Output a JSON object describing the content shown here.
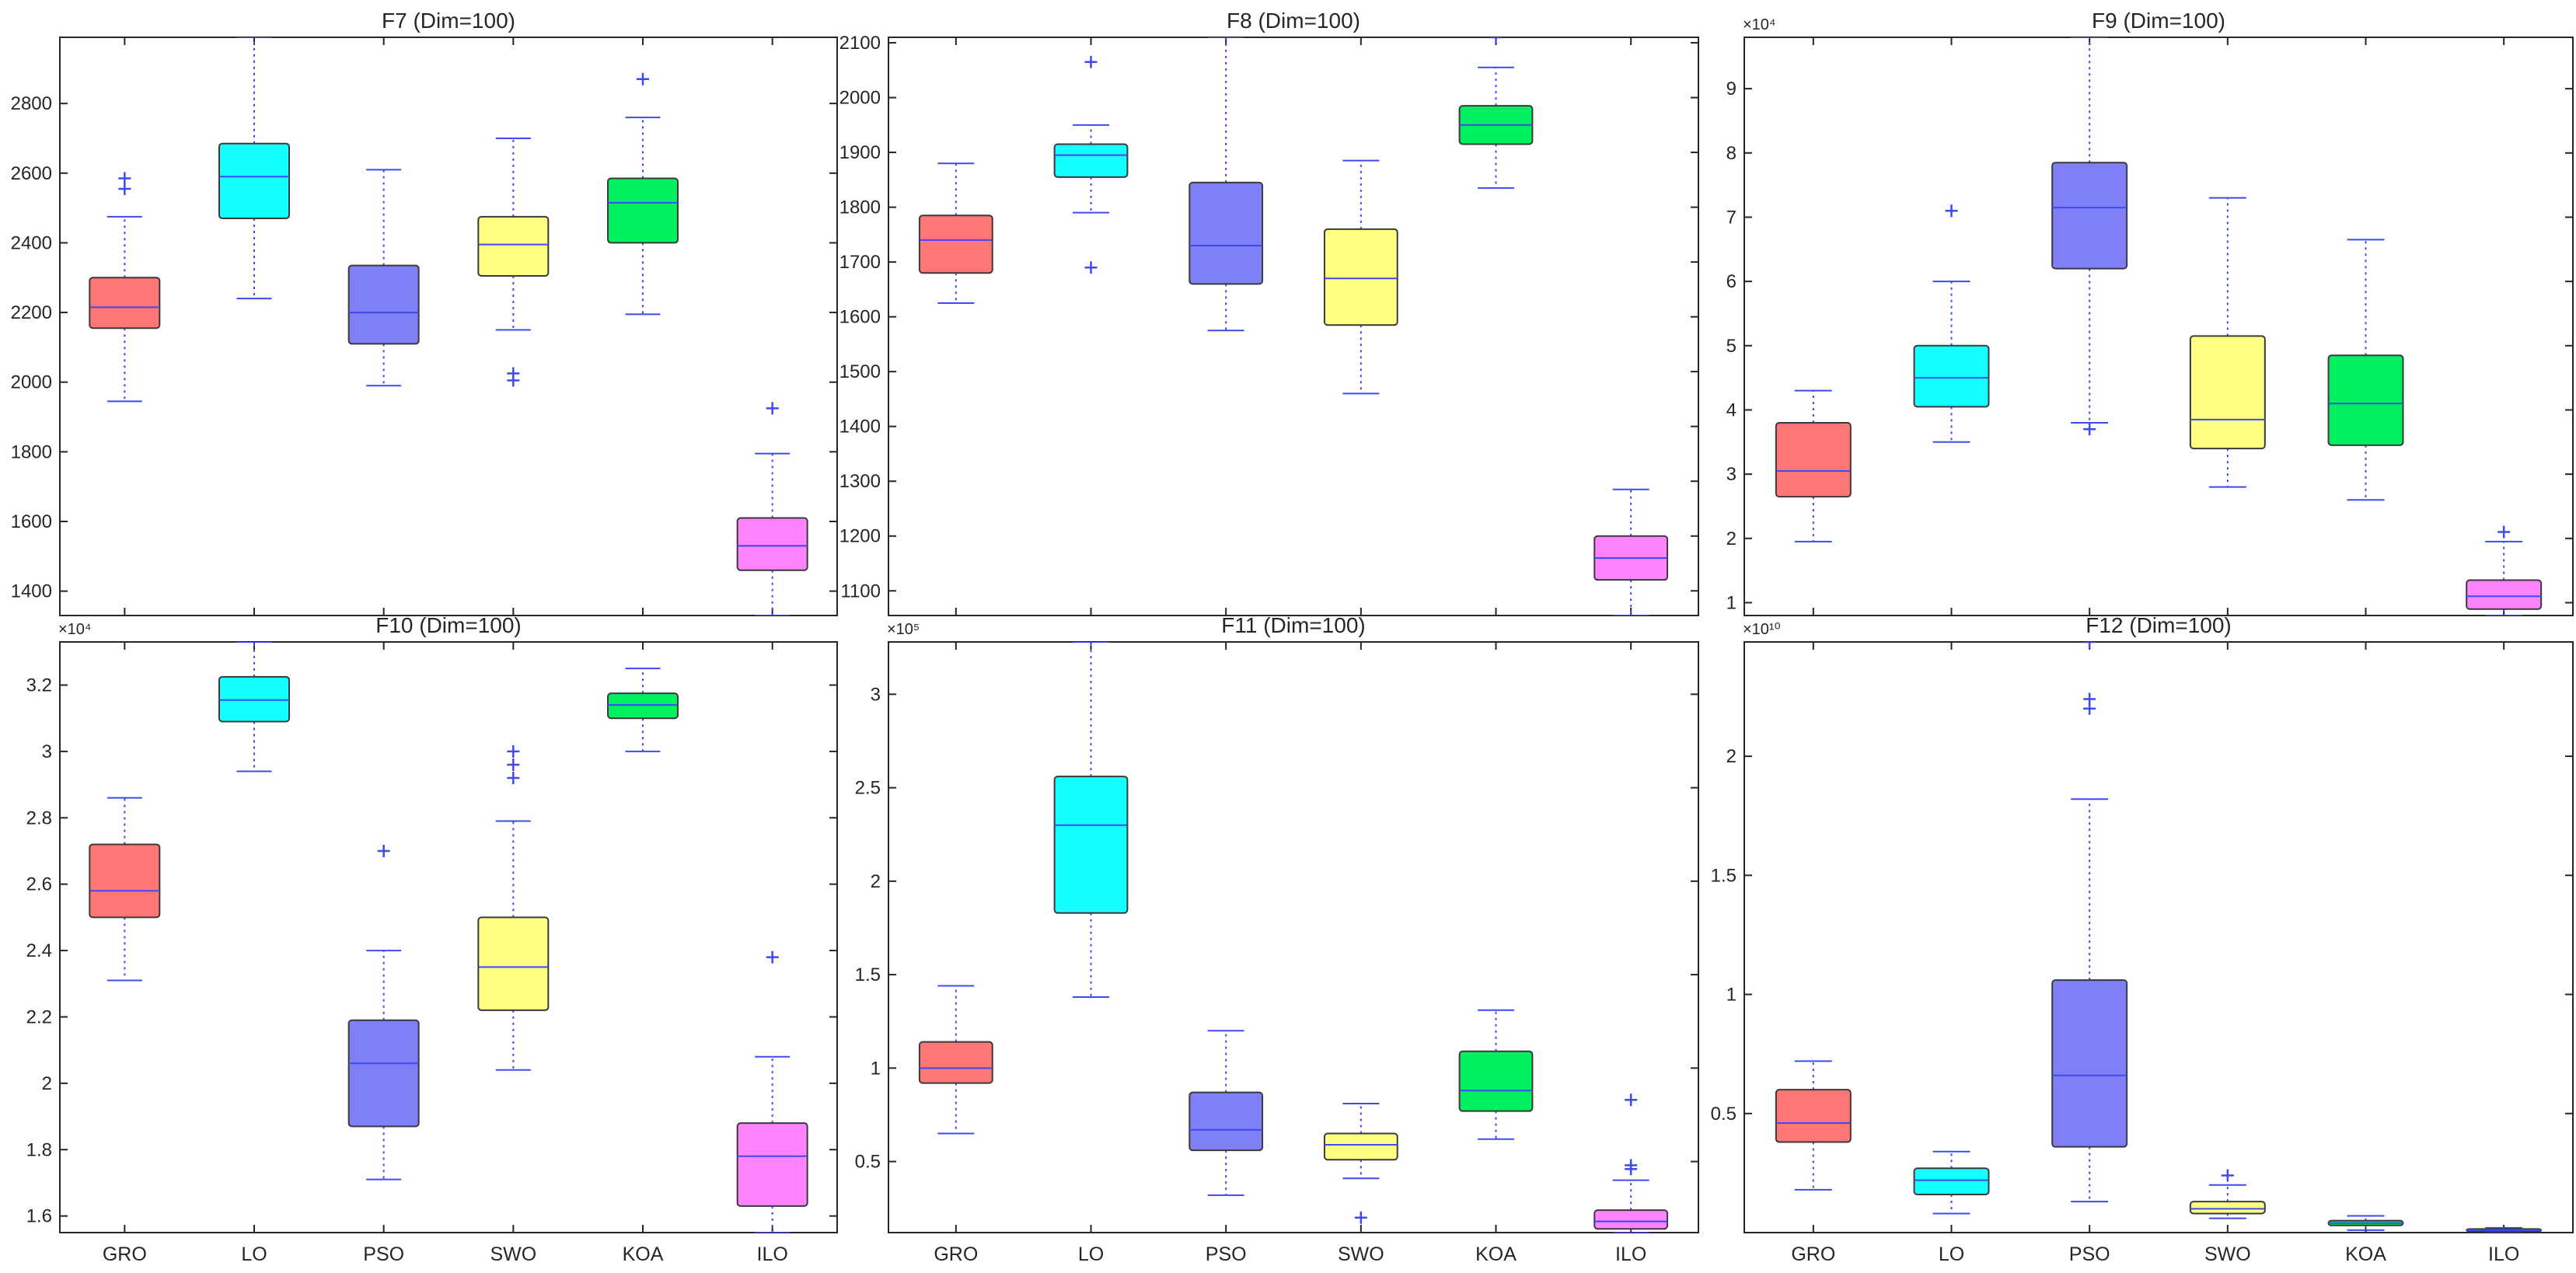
{
  "figure": {
    "categories": [
      "GRO",
      "LO",
      "PSO",
      "SWO",
      "KOA",
      "ILO"
    ]
  },
  "colors": {
    "GRO": "#ff7676",
    "LO": "#14ffff",
    "PSO": "#7f7ff7",
    "SWO": "#ffff82",
    "KOA": "#00f060",
    "ILO": "#ff82ff",
    "whisker": "#3d4af2",
    "outlier": "#3d4af2",
    "axis": "#262626"
  },
  "chart_data": [
    {
      "type": "box",
      "title": "F7 (Dim=100)",
      "multiplier": "",
      "ylim": [
        1330,
        2990
      ],
      "yticks": [
        1400,
        1600,
        1800,
        2000,
        2200,
        2400,
        2600,
        2800
      ],
      "ytick_labels": [
        "1400",
        "1600",
        "1800",
        "2000",
        "2200",
        "2400",
        "2600",
        "2800"
      ],
      "show_xticklabels": false,
      "boxes": [
        {
          "name": "GRO",
          "whislo": 1945,
          "q1": 2155,
          "med": 2215,
          "q3": 2300,
          "whishi": 2475,
          "fliers": [
            2555,
            2585
          ]
        },
        {
          "name": "LO",
          "whislo": 2240,
          "q1": 2470,
          "med": 2590,
          "q3": 2685,
          "whishi": 2990,
          "fliers": []
        },
        {
          "name": "PSO",
          "whislo": 1990,
          "q1": 2110,
          "med": 2200,
          "q3": 2335,
          "whishi": 2610,
          "fliers": []
        },
        {
          "name": "SWO",
          "whislo": 2150,
          "q1": 2305,
          "med": 2395,
          "q3": 2475,
          "whishi": 2700,
          "fliers": [
            2005,
            2025
          ]
        },
        {
          "name": "KOA",
          "whislo": 2195,
          "q1": 2400,
          "med": 2515,
          "q3": 2585,
          "whishi": 2760,
          "fliers": [
            2870
          ]
        },
        {
          "name": "ILO",
          "whislo": 1330,
          "q1": 1460,
          "med": 1530,
          "q3": 1610,
          "whishi": 1795,
          "fliers": [
            1925
          ]
        }
      ]
    },
    {
      "type": "box",
      "title": "F8 (Dim=100)",
      "multiplier": "",
      "ylim": [
        1055,
        2110
      ],
      "yticks": [
        1100,
        1200,
        1300,
        1400,
        1500,
        1600,
        1700,
        1800,
        1900,
        2000,
        2100
      ],
      "ytick_labels": [
        "1100",
        "1200",
        "1300",
        "1400",
        "1500",
        "1600",
        "1700",
        "1800",
        "1900",
        "2000",
        "2100"
      ],
      "show_xticklabels": false,
      "boxes": [
        {
          "name": "GRO",
          "whislo": 1625,
          "q1": 1680,
          "med": 1740,
          "q3": 1785,
          "whishi": 1880,
          "fliers": []
        },
        {
          "name": "LO",
          "whislo": 1790,
          "q1": 1855,
          "med": 1895,
          "q3": 1915,
          "whishi": 1950,
          "fliers": [
            1690,
            2065
          ]
        },
        {
          "name": "PSO",
          "whislo": 1575,
          "q1": 1660,
          "med": 1730,
          "q3": 1845,
          "whishi": 2110,
          "fliers": []
        },
        {
          "name": "SWO",
          "whislo": 1460,
          "q1": 1585,
          "med": 1670,
          "q3": 1760,
          "whishi": 1885,
          "fliers": []
        },
        {
          "name": "KOA",
          "whislo": 1835,
          "q1": 1915,
          "med": 1950,
          "q3": 1985,
          "whishi": 2055,
          "fliers": [
            2110
          ]
        },
        {
          "name": "ILO",
          "whislo": 1055,
          "q1": 1120,
          "med": 1160,
          "q3": 1200,
          "whishi": 1285,
          "fliers": []
        }
      ]
    },
    {
      "type": "box",
      "title": "F9 (Dim=100)",
      "multiplier": "×10⁴",
      "ylim": [
        0.8,
        9.8
      ],
      "yticks": [
        1,
        2,
        3,
        4,
        5,
        6,
        7,
        8,
        9
      ],
      "ytick_labels": [
        "1",
        "2",
        "3",
        "4",
        "5",
        "6",
        "7",
        "8",
        "9"
      ],
      "show_xticklabels": false,
      "boxes": [
        {
          "name": "GRO",
          "whislo": 1.95,
          "q1": 2.65,
          "med": 3.05,
          "q3": 3.8,
          "whishi": 4.3,
          "fliers": []
        },
        {
          "name": "LO",
          "whislo": 3.5,
          "q1": 4.05,
          "med": 4.5,
          "q3": 5.0,
          "whishi": 6.0,
          "fliers": [
            7.1
          ]
        },
        {
          "name": "PSO",
          "whislo": 3.8,
          "q1": 6.2,
          "med": 7.15,
          "q3": 7.85,
          "whishi": 9.8,
          "fliers": [
            3.7
          ]
        },
        {
          "name": "SWO",
          "whislo": 2.8,
          "q1": 3.4,
          "med": 3.85,
          "q3": 5.15,
          "whishi": 7.3,
          "fliers": []
        },
        {
          "name": "KOA",
          "whislo": 2.6,
          "q1": 3.45,
          "med": 4.1,
          "q3": 4.85,
          "whishi": 6.65,
          "fliers": []
        },
        {
          "name": "ILO",
          "whislo": 0.8,
          "q1": 0.9,
          "med": 1.1,
          "q3": 1.35,
          "whishi": 1.95,
          "fliers": [
            2.1
          ]
        }
      ]
    },
    {
      "type": "box",
      "title": "F10 (Dim=100)",
      "multiplier": "×10⁴",
      "ylim": [
        1.55,
        3.33
      ],
      "yticks": [
        1.6,
        1.8,
        2.0,
        2.2,
        2.4,
        2.6,
        2.8,
        3.0,
        3.2
      ],
      "ytick_labels": [
        "1.6",
        "1.8",
        "2",
        "2.2",
        "2.4",
        "2.6",
        "2.8",
        "3",
        "3.2"
      ],
      "show_xticklabels": true,
      "boxes": [
        {
          "name": "GRO",
          "whislo": 2.31,
          "q1": 2.5,
          "med": 2.58,
          "q3": 2.72,
          "whishi": 2.86,
          "fliers": []
        },
        {
          "name": "LO",
          "whislo": 2.94,
          "q1": 3.09,
          "med": 3.155,
          "q3": 3.225,
          "whishi": 3.33,
          "fliers": []
        },
        {
          "name": "PSO",
          "whislo": 1.71,
          "q1": 1.87,
          "med": 2.06,
          "q3": 2.19,
          "whishi": 2.4,
          "fliers": [
            2.7
          ]
        },
        {
          "name": "SWO",
          "whislo": 2.04,
          "q1": 2.22,
          "med": 2.35,
          "q3": 2.5,
          "whishi": 2.79,
          "fliers": [
            2.92,
            2.96,
            3.0
          ]
        },
        {
          "name": "KOA",
          "whislo": 3.0,
          "q1": 3.1,
          "med": 3.14,
          "q3": 3.175,
          "whishi": 3.25,
          "fliers": []
        },
        {
          "name": "ILO",
          "whislo": 1.55,
          "q1": 1.63,
          "med": 1.78,
          "q3": 1.88,
          "whishi": 2.08,
          "fliers": [
            2.38
          ]
        }
      ]
    },
    {
      "type": "box",
      "title": "F11 (Dim=100)",
      "multiplier": "×10⁵",
      "ylim": [
        0.12,
        3.28
      ],
      "yticks": [
        0.5,
        1.0,
        1.5,
        2.0,
        2.5,
        3.0
      ],
      "ytick_labels": [
        "0.5",
        "1",
        "1.5",
        "2",
        "2.5",
        "3"
      ],
      "show_xticklabels": true,
      "boxes": [
        {
          "name": "GRO",
          "whislo": 0.65,
          "q1": 0.92,
          "med": 1.0,
          "q3": 1.14,
          "whishi": 1.44,
          "fliers": []
        },
        {
          "name": "LO",
          "whislo": 1.38,
          "q1": 1.83,
          "med": 2.3,
          "q3": 2.56,
          "whishi": 3.28,
          "fliers": []
        },
        {
          "name": "PSO",
          "whislo": 0.32,
          "q1": 0.56,
          "med": 0.67,
          "q3": 0.87,
          "whishi": 1.2,
          "fliers": []
        },
        {
          "name": "SWO",
          "whislo": 0.41,
          "q1": 0.51,
          "med": 0.59,
          "q3": 0.65,
          "whishi": 0.81,
          "fliers": [
            0.2
          ]
        },
        {
          "name": "KOA",
          "whislo": 0.62,
          "q1": 0.77,
          "med": 0.88,
          "q3": 1.09,
          "whishi": 1.31,
          "fliers": []
        },
        {
          "name": "ILO",
          "whislo": 0.12,
          "q1": 0.14,
          "med": 0.18,
          "q3": 0.24,
          "whishi": 0.4,
          "fliers": [
            0.46,
            0.48,
            0.83
          ]
        }
      ]
    },
    {
      "type": "box",
      "title": "F12 (Dim=100)",
      "multiplier": "×10¹⁰",
      "ylim": [
        0.0,
        2.48
      ],
      "yticks": [
        0.5,
        1.0,
        1.5,
        2.0
      ],
      "ytick_labels": [
        "0.5",
        "1",
        "1.5",
        "2"
      ],
      "show_xticklabels": true,
      "boxes": [
        {
          "name": "GRO",
          "whislo": 0.18,
          "q1": 0.38,
          "med": 0.46,
          "q3": 0.6,
          "whishi": 0.72,
          "fliers": []
        },
        {
          "name": "LO",
          "whislo": 0.08,
          "q1": 0.16,
          "med": 0.22,
          "q3": 0.27,
          "whishi": 0.34,
          "fliers": []
        },
        {
          "name": "PSO",
          "whislo": 0.13,
          "q1": 0.36,
          "med": 0.66,
          "q3": 1.06,
          "whishi": 1.82,
          "fliers": [
            2.2,
            2.24,
            2.48
          ]
        },
        {
          "name": "SWO",
          "whislo": 0.06,
          "q1": 0.08,
          "med": 0.1,
          "q3": 0.13,
          "whishi": 0.2,
          "fliers": [
            0.24
          ]
        },
        {
          "name": "KOA",
          "whislo": 0.01,
          "q1": 0.03,
          "med": 0.04,
          "q3": 0.05,
          "whishi": 0.07,
          "fliers": []
        },
        {
          "name": "ILO",
          "whislo": 0.0,
          "q1": 0.005,
          "med": 0.01,
          "q3": 0.015,
          "whishi": 0.02,
          "fliers": []
        }
      ]
    }
  ]
}
